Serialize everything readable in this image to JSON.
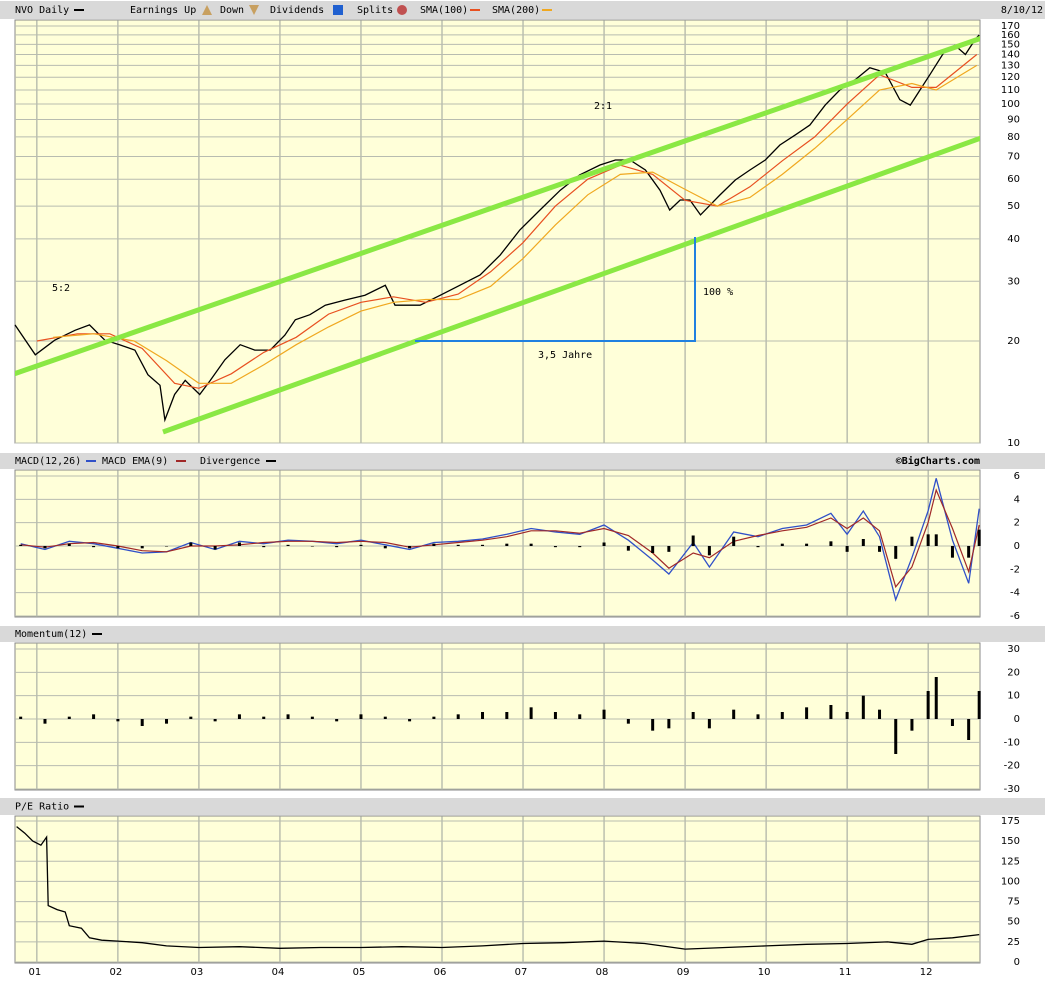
{
  "chart_data": [
    {
      "type": "line",
      "log": true,
      "date": "8/10/12",
      "events_legend": [
        "Earnings Up",
        "Down",
        "Dividends",
        "Splits"
      ],
      "annotations": [
        "5:2",
        "2:1",
        "100 %",
        "3,5 Jahre"
      ],
      "xlim": [
        2000.73,
        2012.64
      ],
      "ylim": [
        10,
        177
      ],
      "grid": true,
      "yticks": [
        10,
        20,
        30,
        40,
        50,
        60,
        70,
        80,
        90,
        100,
        110,
        120,
        130,
        140,
        150,
        160,
        170
      ],
      "series": [
        {
          "name": "NVO Daily",
          "color": "#000000",
          "x": [
            2000.73,
            2000.98,
            2001.22,
            2001.47,
            2001.65,
            2001.84,
            2002.02,
            2002.21,
            2002.37,
            2002.52,
            2002.58,
            2002.7,
            2002.83,
            2003.01,
            2003.14,
            2003.32,
            2003.51,
            2003.69,
            2003.88,
            2004.06,
            2004.19,
            2004.37,
            2004.56,
            2004.8,
            2005.05,
            2005.3,
            2005.42,
            2005.73,
            2005.98,
            2006.22,
            2006.47,
            2006.72,
            2006.96,
            2007.21,
            2007.46,
            2007.7,
            2007.95,
            2008.14,
            2008.32,
            2008.51,
            2008.69,
            2008.81,
            2008.94,
            2009.06,
            2009.19,
            2009.31,
            2009.43,
            2009.62,
            2009.8,
            2009.99,
            2010.17,
            2010.36,
            2010.54,
            2010.73,
            2010.91,
            2011.1,
            2011.28,
            2011.47,
            2011.65,
            2011.78,
            2011.9,
            2012.02,
            2012.21,
            2012.33,
            2012.46,
            2012.58,
            2012.63
          ],
          "values": [
            22.3,
            18.2,
            20.1,
            21.5,
            22.3,
            20.1,
            19.5,
            18.8,
            15.9,
            14.8,
            11.7,
            13.9,
            15.3,
            13.9,
            15.3,
            17.6,
            19.5,
            18.8,
            18.8,
            20.8,
            23.1,
            23.9,
            25.5,
            26.4,
            27.3,
            29.2,
            25.5,
            25.5,
            27.3,
            29.2,
            31.3,
            35.9,
            42.5,
            48.7,
            55.7,
            61.8,
            66.1,
            68.4,
            68.4,
            63.9,
            55.7,
            48.7,
            52.1,
            52.1,
            47.1,
            50.4,
            53.9,
            59.7,
            63.9,
            68.4,
            75.7,
            81.1,
            86.7,
            99.3,
            110,
            118,
            128,
            124,
            103,
            99.3,
            110,
            122,
            144,
            149,
            140,
            155,
            160
          ]
        },
        {
          "name": "SMA(100)",
          "color": "#e85020",
          "x": [
            2001.0,
            2001.5,
            2001.9,
            2002.3,
            2002.7,
            2003.0,
            2003.4,
            2003.8,
            2004.2,
            2004.6,
            2005.0,
            2005.4,
            2005.8,
            2006.2,
            2006.6,
            2007.0,
            2007.4,
            2007.8,
            2008.2,
            2008.6,
            2009.0,
            2009.4,
            2009.8,
            2010.2,
            2010.6,
            2011.0,
            2011.4,
            2011.8,
            2012.1,
            2012.6
          ],
          "values": [
            20,
            21,
            21,
            19,
            15,
            14.5,
            16,
            18.5,
            20.5,
            24,
            26,
            27,
            26,
            27.5,
            32,
            39,
            50,
            60,
            66,
            62,
            52,
            50,
            57,
            68,
            80,
            100,
            122,
            112,
            112,
            140
          ]
        },
        {
          "name": "SMA(200)",
          "color": "#f0a820",
          "x": [
            2001.2,
            2001.7,
            2002.2,
            2002.6,
            2003.0,
            2003.4,
            2003.8,
            2004.2,
            2004.6,
            2005.0,
            2005.4,
            2005.8,
            2006.2,
            2006.6,
            2007.0,
            2007.4,
            2007.8,
            2008.2,
            2008.6,
            2009.0,
            2009.4,
            2009.8,
            2010.2,
            2010.6,
            2011.0,
            2011.4,
            2011.8,
            2012.1,
            2012.6
          ],
          "values": [
            20.5,
            21,
            20,
            17.5,
            15,
            15,
            17,
            19.5,
            22,
            24.5,
            26,
            26.5,
            26.5,
            29,
            35,
            44,
            54,
            62,
            63,
            56,
            50,
            53,
            62,
            74,
            90,
            110,
            115,
            110,
            130
          ]
        }
      ]
    },
    {
      "type": "line",
      "credit": "©BigCharts.com",
      "xlim": [
        2000.73,
        2012.64
      ],
      "ylim": [
        -6,
        6
      ],
      "grid": true,
      "yticks": [
        6,
        4,
        2,
        0,
        -2,
        -4,
        -6
      ],
      "x": [
        2000.8,
        2001.1,
        2001.4,
        2001.7,
        2002.0,
        2002.3,
        2002.6,
        2002.9,
        2003.2,
        2003.5,
        2003.8,
        2004.1,
        2004.4,
        2004.7,
        2005.0,
        2005.3,
        2005.6,
        2005.9,
        2006.2,
        2006.5,
        2006.8,
        2007.1,
        2007.4,
        2007.7,
        2008.0,
        2008.3,
        2008.6,
        2008.8,
        2009.1,
        2009.3,
        2009.6,
        2009.9,
        2010.2,
        2010.5,
        2010.8,
        2011.0,
        2011.2,
        2011.4,
        2011.6,
        2011.8,
        2012.0,
        2012.1,
        2012.3,
        2012.5,
        2012.63
      ],
      "series": [
        {
          "name": "MACD(12,26)",
          "color": "#3050c8",
          "values": [
            0.2,
            -0.3,
            0.4,
            0.2,
            -0.2,
            -0.6,
            -0.5,
            0.3,
            -0.3,
            0.4,
            0.2,
            0.5,
            0.4,
            0.2,
            0.5,
            0.1,
            -0.3,
            0.3,
            0.4,
            0.6,
            1.0,
            1.5,
            1.2,
            1.0,
            1.8,
            0.5,
            -1.2,
            -2.4,
            0.3,
            -1.8,
            1.2,
            0.8,
            1.5,
            1.8,
            2.8,
            1.0,
            3.0,
            0.8,
            -4.6,
            -1.0,
            3.0,
            5.8,
            0.5,
            -3.2,
            3.2
          ]
        },
        {
          "name": "MACD EMA(9)",
          "color": "#a02828",
          "values": [
            0.1,
            -0.1,
            0.2,
            0.3,
            0.0,
            -0.4,
            -0.5,
            0.0,
            0.0,
            0.1,
            0.3,
            0.4,
            0.4,
            0.3,
            0.4,
            0.3,
            -0.1,
            0.1,
            0.3,
            0.5,
            0.8,
            1.3,
            1.3,
            1.1,
            1.5,
            0.9,
            -0.6,
            -1.9,
            -0.6,
            -1.0,
            0.4,
            0.9,
            1.3,
            1.6,
            2.4,
            1.5,
            2.4,
            1.3,
            -3.5,
            -1.8,
            2.0,
            4.8,
            1.5,
            -2.2,
            1.8
          ]
        },
        {
          "name": "Divergence",
          "color": "#000000",
          "type": "bar",
          "values": [
            0.1,
            -0.2,
            0.2,
            -0.1,
            -0.2,
            -0.2,
            0.0,
            0.3,
            -0.3,
            0.3,
            -0.1,
            0.1,
            0.0,
            -0.1,
            0.1,
            -0.2,
            -0.2,
            0.2,
            0.1,
            0.1,
            0.2,
            0.2,
            -0.1,
            -0.1,
            0.3,
            -0.4,
            -0.6,
            -0.5,
            0.9,
            -0.8,
            0.8,
            -0.1,
            0.2,
            0.2,
            0.4,
            -0.5,
            0.6,
            -0.5,
            -1.1,
            0.8,
            1.0,
            1.0,
            -1.0,
            -1.0,
            1.4
          ]
        }
      ]
    },
    {
      "type": "bar",
      "xlim": [
        2000.73,
        2012.64
      ],
      "ylim": [
        -30,
        30
      ],
      "grid": true,
      "yticks": [
        30,
        20,
        10,
        0,
        -10,
        -20,
        -30
      ],
      "x": [
        2000.8,
        2001.1,
        2001.4,
        2001.7,
        2002.0,
        2002.3,
        2002.6,
        2002.9,
        2003.2,
        2003.5,
        2003.8,
        2004.1,
        2004.4,
        2004.7,
        2005.0,
        2005.3,
        2005.6,
        2005.9,
        2006.2,
        2006.5,
        2006.8,
        2007.1,
        2007.4,
        2007.7,
        2008.0,
        2008.3,
        2008.6,
        2008.8,
        2009.1,
        2009.3,
        2009.6,
        2009.9,
        2010.2,
        2010.5,
        2010.8,
        2011.0,
        2011.2,
        2011.4,
        2011.6,
        2011.8,
        2012.0,
        2012.1,
        2012.3,
        2012.5,
        2012.63
      ],
      "series": [
        {
          "name": "Momentum(12)",
          "color": "#000000",
          "values": [
            1,
            -2,
            1,
            2,
            -1,
            -3,
            -2,
            1,
            -1,
            2,
            1,
            2,
            1,
            -1,
            2,
            1,
            -1,
            1,
            2,
            3,
            3,
            5,
            3,
            2,
            4,
            -2,
            -5,
            -4,
            3,
            -4,
            4,
            2,
            3,
            5,
            6,
            3,
            10,
            4,
            -15,
            -5,
            12,
            18,
            -3,
            -9,
            12
          ]
        }
      ]
    },
    {
      "type": "line",
      "xlim": [
        2000.73,
        2012.64
      ],
      "ylim": [
        0,
        175
      ],
      "grid": true,
      "yticks": [
        175,
        150,
        125,
        100,
        75,
        50,
        25,
        0
      ],
      "xticks": [
        {
          "value": 2001,
          "label": "01"
        },
        {
          "value": 2002,
          "label": "02"
        },
        {
          "value": 2003,
          "label": "03"
        },
        {
          "value": 2004,
          "label": "04"
        },
        {
          "value": 2005,
          "label": "05"
        },
        {
          "value": 2006,
          "label": "06"
        },
        {
          "value": 2007,
          "label": "07"
        },
        {
          "value": 2008,
          "label": "08"
        },
        {
          "value": 2009,
          "label": "09"
        },
        {
          "value": 2010,
          "label": "10"
        },
        {
          "value": 2011,
          "label": "11"
        },
        {
          "value": 2012,
          "label": "12"
        }
      ],
      "series": [
        {
          "name": "P/E Ratio",
          "color": "#000000",
          "x": [
            2000.75,
            2000.85,
            2000.95,
            2001.05,
            2001.12,
            2001.14,
            2001.25,
            2001.35,
            2001.4,
            2001.55,
            2001.65,
            2001.8,
            2002.0,
            2002.3,
            2002.6,
            2003.0,
            2003.5,
            2004.0,
            2004.5,
            2005.0,
            2005.5,
            2006.0,
            2006.5,
            2007.0,
            2007.5,
            2008.0,
            2008.5,
            2009.0,
            2009.5,
            2010.0,
            2010.5,
            2011.0,
            2011.5,
            2011.8,
            2012.0,
            2012.3,
            2012.63
          ],
          "values": [
            168,
            160,
            150,
            145,
            155,
            70,
            65,
            62,
            45,
            42,
            30,
            27,
            26,
            24,
            20,
            18,
            19,
            17,
            18,
            18,
            19,
            18,
            20,
            23,
            24,
            26,
            23,
            16,
            18,
            20,
            22,
            23,
            25,
            22,
            28,
            30,
            34
          ]
        }
      ]
    }
  ]
}
